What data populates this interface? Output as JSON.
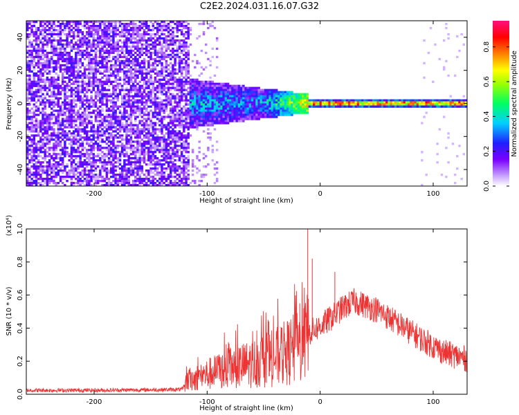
{
  "title": "C2E2.2024.031.16.07.G32",
  "chart_data": [
    {
      "type": "heatmap",
      "xlabel": "Height of straight line (km)",
      "ylabel": "Frequency (Hz)",
      "xlim": [
        -260,
        130
      ],
      "ylim": [
        -50,
        50
      ],
      "x_ticks": [
        -200,
        -100,
        0,
        100
      ],
      "y_ticks": [
        -40,
        -20,
        0,
        20,
        40
      ],
      "colorbar": {
        "label": "Normalized spectral amplitude",
        "range": [
          0.0,
          0.95
        ],
        "ticks": [
          "0.0",
          "0.2",
          "0.4",
          "0.6",
          "0.8"
        ],
        "colormap": "rainbow"
      },
      "features": [
        {
          "x_range": [
            -260,
            -115
          ],
          "f_range": [
            -50,
            50
          ],
          "amplitude": 0.12
        },
        {
          "x_range": [
            -115,
            -10
          ],
          "f_range": [
            -15,
            15
          ],
          "amplitude": 0.35
        },
        {
          "x_range": [
            -10,
            130
          ],
          "f_range": [
            -2,
            2
          ],
          "amplitude": 0.9
        }
      ]
    },
    {
      "type": "line",
      "xlabel": "Height of straight line (km)",
      "ylabel": "SNR (10 * v/v)",
      "y_multiplier": "(x10⁴)",
      "xlim": [
        -260,
        130
      ],
      "ylim": [
        0.0,
        1.0
      ],
      "x_ticks": [
        -200,
        -100,
        0,
        100
      ],
      "y_ticks": [
        "0.0",
        "0.2",
        "0.4",
        "0.6",
        "0.8",
        "1.0"
      ],
      "series_color": "#ee3333",
      "envelope": {
        "x": [
          -260,
          -200,
          -150,
          -122,
          -118,
          -100,
          -80,
          -60,
          -40,
          -20,
          -10,
          0,
          10,
          20,
          30,
          50,
          70,
          90,
          110,
          130
        ],
        "y": [
          0.025,
          0.025,
          0.028,
          0.03,
          0.09,
          0.13,
          0.17,
          0.2,
          0.24,
          0.3,
          0.38,
          0.42,
          0.47,
          0.53,
          0.57,
          0.52,
          0.43,
          0.34,
          0.26,
          0.22
        ]
      },
      "spikes": [
        {
          "x": -11,
          "y": 1.0
        },
        {
          "x": -7,
          "y": 0.82
        },
        {
          "x": 13,
          "y": 0.74
        },
        {
          "x": -18,
          "y": 0.55
        }
      ]
    }
  ]
}
